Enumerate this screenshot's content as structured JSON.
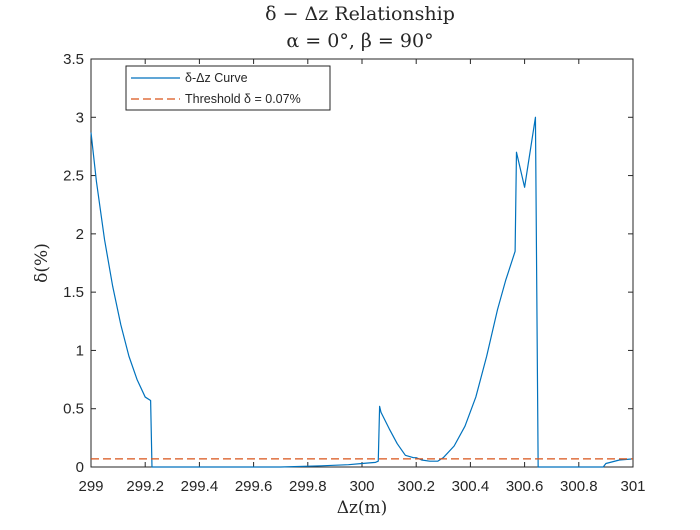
{
  "chart_data": {
    "type": "line",
    "title": "δ − Δz Relationship",
    "subtitle": "α = 0°, β = 90°",
    "xlabel": "Δz(m)",
    "ylabel": "δ(%)",
    "xlim": [
      299,
      301
    ],
    "ylim": [
      0,
      3.5
    ],
    "xticks": [
      299,
      299.2,
      299.4,
      299.6,
      299.8,
      300,
      300.2,
      300.4,
      300.6,
      300.8,
      301
    ],
    "xtick_labels": [
      "299",
      "299.2",
      "299.4",
      "299.6",
      "299.8",
      "300",
      "300.2",
      "300.4",
      "300.6",
      "300.8",
      "301"
    ],
    "yticks": [
      0,
      0.5,
      1,
      1.5,
      2,
      2.5,
      3,
      3.5
    ],
    "ytick_labels": [
      "0",
      "0.5",
      "1",
      "1.5",
      "2",
      "2.5",
      "3",
      "3.5"
    ],
    "grid": false,
    "legend_position": "top-left",
    "series": [
      {
        "name": "δ-Δz Curve",
        "color": "#0072BD",
        "style": "solid",
        "x": [
          299.0,
          299.02,
          299.05,
          299.08,
          299.11,
          299.14,
          299.17,
          299.2,
          299.22,
          299.225,
          299.3,
          299.5,
          299.7,
          299.85,
          299.95,
          300.0,
          300.05,
          300.06,
          300.065,
          300.07,
          300.1,
          300.13,
          300.16,
          300.19,
          300.2,
          300.22,
          300.25,
          300.28,
          300.3,
          300.34,
          300.38,
          300.42,
          300.46,
          300.5,
          300.53,
          300.565,
          300.57,
          300.6,
          300.64,
          300.645,
          300.65,
          300.7,
          300.8,
          300.89,
          300.9,
          300.95,
          301.0
        ],
        "y": [
          2.87,
          2.45,
          1.95,
          1.55,
          1.22,
          0.95,
          0.75,
          0.6,
          0.57,
          0.0,
          0.0,
          0.0,
          0.0,
          0.01,
          0.02,
          0.03,
          0.04,
          0.05,
          0.52,
          0.47,
          0.33,
          0.2,
          0.1,
          0.08,
          0.08,
          0.06,
          0.05,
          0.05,
          0.08,
          0.18,
          0.35,
          0.6,
          0.95,
          1.35,
          1.6,
          1.85,
          2.7,
          2.4,
          3.0,
          1.5,
          0.0,
          0.0,
          0.0,
          0.0,
          0.03,
          0.06,
          0.07
        ]
      },
      {
        "name": "Threshold δ = 0.07%",
        "color": "#D95319",
        "style": "dashed",
        "x": [
          299,
          301
        ],
        "y": [
          0.07,
          0.07
        ]
      }
    ]
  }
}
